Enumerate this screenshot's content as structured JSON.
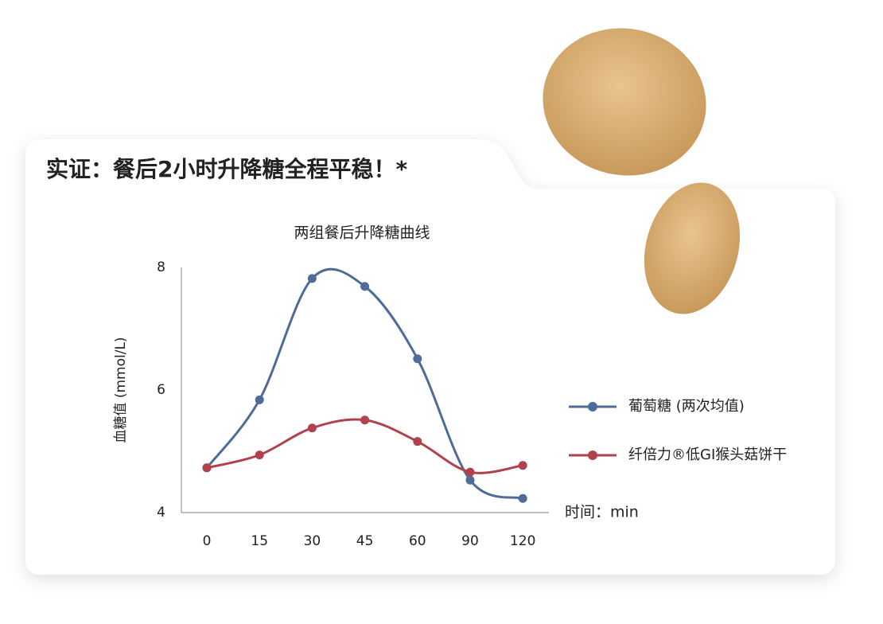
{
  "header": {
    "title": "实证：餐后2小时升降糖全程平稳！*"
  },
  "chart_data": {
    "type": "line",
    "title": "两组餐后升降糖曲线",
    "y_label": "血糖值 (mmol/L)",
    "x_label": "时间：min",
    "categories": [
      0,
      15,
      30,
      45,
      60,
      90,
      120
    ],
    "series": [
      {
        "name": "葡萄糖 (两次均值)",
        "color": "#4f6b9a",
        "values": [
          4.73,
          5.84,
          7.82,
          7.69,
          6.51,
          4.53,
          4.23
        ]
      },
      {
        "name": "纤倍力®低GI猴头菇饼干",
        "color": "#b2414e",
        "values": [
          4.73,
          4.94,
          5.38,
          5.51,
          5.16,
          4.66,
          4.77
        ]
      }
    ],
    "ylim": [
      4,
      8
    ],
    "yticks": [
      4,
      6,
      8
    ],
    "grid": false,
    "legend": "right"
  }
}
